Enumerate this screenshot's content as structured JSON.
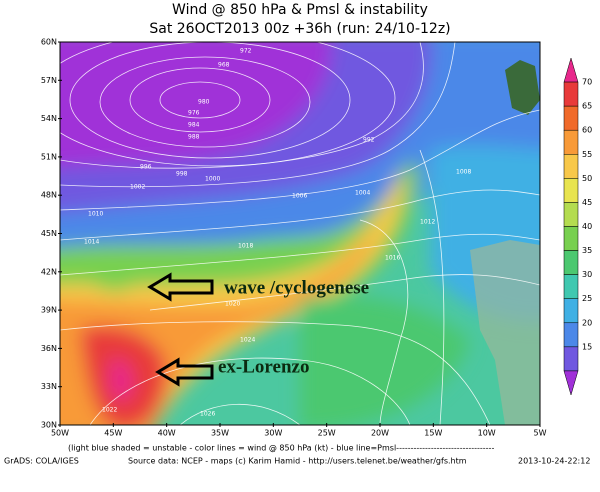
{
  "header": {
    "title": "Wind @ 850 hPa & Pmsl & instability",
    "subtitle": "Sat 26OCT2013 00z  +36h (run: 24/10-12z)"
  },
  "map": {
    "lat_labels": [
      "60N",
      "57N",
      "54N",
      "51N",
      "48N",
      "45N",
      "42N",
      "39N",
      "36N",
      "33N",
      "30N"
    ],
    "lon_labels": [
      "50W",
      "45W",
      "40W",
      "35W",
      "30W",
      "25W",
      "20W",
      "15W",
      "10W",
      "5W"
    ],
    "isobar_labels": [
      "972",
      "968",
      "980",
      "984",
      "976",
      "988",
      "992",
      "996",
      "998",
      "1000",
      "1002",
      "1004",
      "1006",
      "1008",
      "1010",
      "1012",
      "1014",
      "1016",
      "1018",
      "1020",
      "1022",
      "1024",
      "1026"
    ]
  },
  "colorbar": {
    "labels": [
      "70",
      "65",
      "60",
      "55",
      "50",
      "45",
      "40",
      "35",
      "30",
      "25",
      "20",
      "15"
    ],
    "colors": [
      "#e8288c",
      "#e83a3a",
      "#f06a2a",
      "#f89a38",
      "#f8c84a",
      "#e8e450",
      "#b4dc50",
      "#78d050",
      "#4cc870",
      "#40c8b0",
      "#40b0e4",
      "#4c88e8",
      "#7058e0",
      "#a030d8"
    ]
  },
  "annotations": {
    "wave": "wave /cyclogenese",
    "lorenzo": "ex-Lorenzo"
  },
  "footer": {
    "legend": "(light blue shaded = unstable - color lines = wind @ 850 hPa (kt) - blue line=Pmsl----------------------------------",
    "grads": "GrADS: COLA/IGES",
    "source": "Source data: NCEP - maps (c) Karim Hamid - http://users.telenet.be/weather/gfs.htm",
    "stamp": "2013-10-24-22:12"
  }
}
